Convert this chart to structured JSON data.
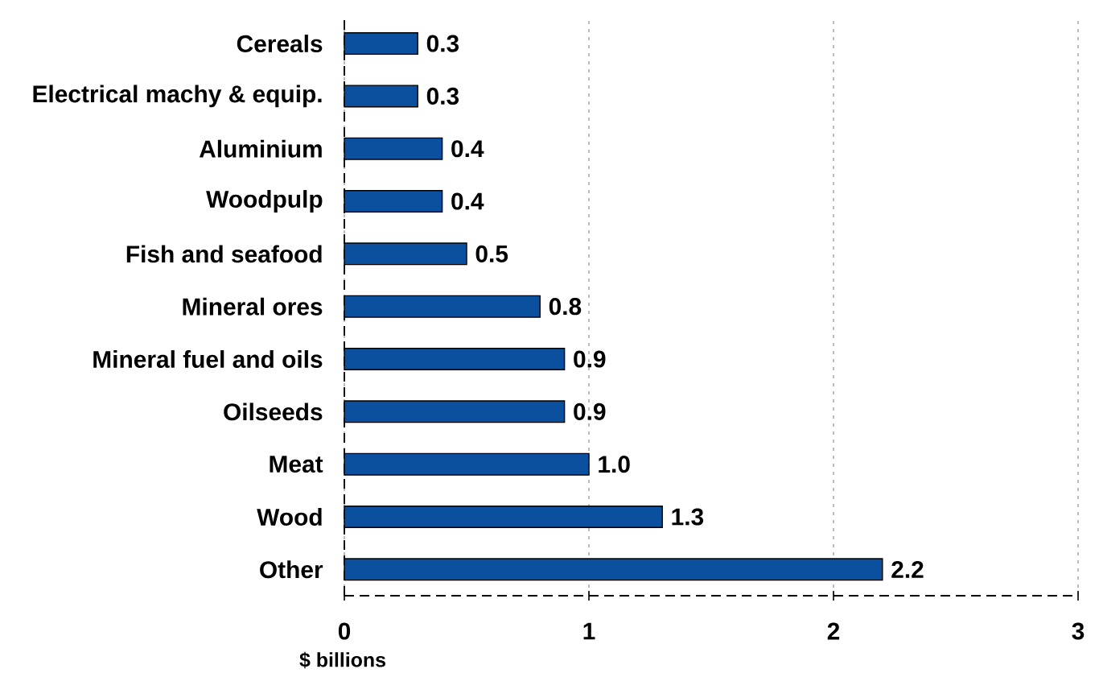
{
  "chart_data": {
    "type": "bar",
    "orientation": "horizontal",
    "categories": [
      "Cereals",
      "Electrical machy & equip.",
      "Aluminium",
      "Woodpulp",
      "Fish and seafood",
      "Mineral ores",
      "Mineral fuel and oils",
      "Oilseeds",
      "Meat",
      "Wood",
      "Other"
    ],
    "values": [
      0.3,
      0.3,
      0.4,
      0.4,
      0.5,
      0.8,
      0.9,
      0.9,
      1.0,
      1.3,
      2.2
    ],
    "value_labels": [
      "0.3",
      "0.3",
      "0.4",
      "0.4",
      "0.5",
      "0.8",
      "0.9",
      "0.9",
      "1.0",
      "1.3",
      "2.2"
    ],
    "color": "#0b4f9f",
    "xlabel": "$ billions",
    "xlim": [
      0,
      3
    ],
    "xticks": [
      0,
      1,
      2,
      3
    ],
    "grid": "x"
  }
}
